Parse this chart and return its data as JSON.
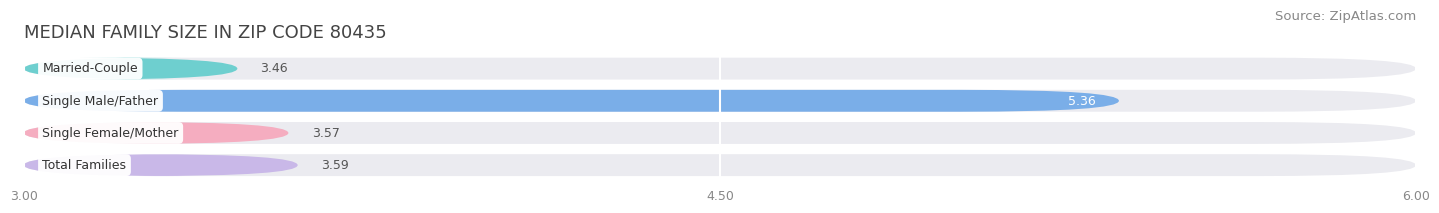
{
  "title": "MEDIAN FAMILY SIZE IN ZIP CODE 80435",
  "source": "Source: ZipAtlas.com",
  "categories": [
    "Married-Couple",
    "Single Male/Father",
    "Single Female/Mother",
    "Total Families"
  ],
  "values": [
    3.46,
    5.36,
    3.57,
    3.59
  ],
  "bar_colors": [
    "#6ecfcf",
    "#7aaee8",
    "#f5adc0",
    "#c9b8e8"
  ],
  "label_colors": [
    "#333333",
    "#ffffff",
    "#333333",
    "#333333"
  ],
  "xlim": [
    3.0,
    6.0
  ],
  "xticks": [
    3.0,
    4.5,
    6.0
  ],
  "xtick_labels": [
    "3.00",
    "4.50",
    "6.00"
  ],
  "bar_height": 0.68,
  "background_color": "#ffffff",
  "bar_background_color": "#ebebf0",
  "title_fontsize": 13,
  "source_fontsize": 9.5,
  "label_fontsize": 9,
  "value_fontsize": 9,
  "tick_fontsize": 9,
  "bar_gap": 0.18
}
